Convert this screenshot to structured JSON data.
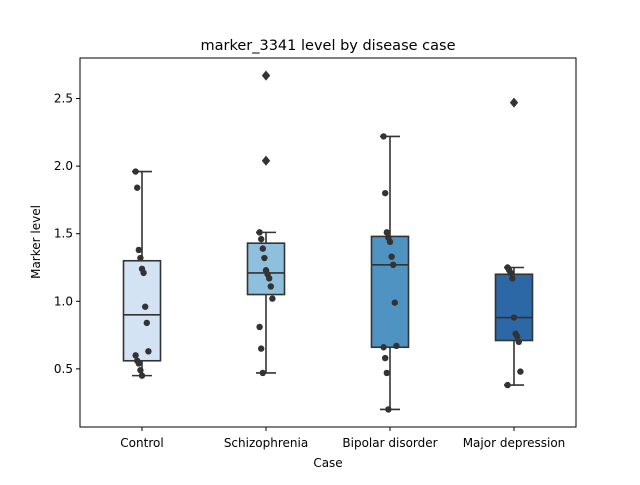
{
  "chart_data": {
    "type": "box",
    "title": "marker_3341 level by disease case",
    "xlabel": "Case",
    "ylabel": "Marker level",
    "ylim": [
      0.07,
      2.8
    ],
    "yticks": [
      0.5,
      1.0,
      1.5,
      2.0,
      2.5
    ],
    "ytick_labels": [
      "0.5",
      "1.0",
      "1.5",
      "2.0",
      "2.5"
    ],
    "grid": false,
    "legend": "none",
    "categories": [
      "Control",
      "Schizophrenia",
      "Bipolar disorder",
      "Major depression"
    ],
    "colors": [
      "#d3e3f3",
      "#8ebfdc",
      "#4f93c3",
      "#2c68a6"
    ],
    "groups": [
      {
        "name": "Control",
        "q1": 0.56,
        "median": 0.9,
        "q3": 1.3,
        "whisker_low": 0.45,
        "whisker_high": 1.96,
        "outliers": [],
        "points": [
          1.96,
          1.84,
          1.38,
          1.32,
          1.24,
          1.21,
          0.96,
          0.84,
          0.63,
          0.6,
          0.56,
          0.54,
          0.49,
          0.45
        ]
      },
      {
        "name": "Schizophrenia",
        "q1": 1.05,
        "median": 1.21,
        "q3": 1.43,
        "whisker_low": 0.47,
        "whisker_high": 1.51,
        "outliers": [
          2.67,
          2.04
        ],
        "points": [
          1.51,
          1.46,
          1.39,
          1.32,
          1.23,
          1.2,
          1.17,
          1.11,
          1.02,
          0.81,
          0.65,
          0.47
        ]
      },
      {
        "name": "Bipolar disorder",
        "q1": 0.66,
        "median": 1.27,
        "q3": 1.48,
        "whisker_low": 0.2,
        "whisker_high": 2.22,
        "outliers": [],
        "points": [
          2.22,
          1.8,
          1.51,
          1.47,
          1.44,
          1.33,
          1.27,
          0.99,
          0.67,
          0.66,
          0.58,
          0.47,
          0.2
        ]
      },
      {
        "name": "Major depression",
        "q1": 0.71,
        "median": 0.88,
        "q3": 1.2,
        "whisker_low": 0.38,
        "whisker_high": 1.25,
        "outliers": [
          2.47
        ],
        "points": [
          1.25,
          1.23,
          1.21,
          1.17,
          0.88,
          0.76,
          0.74,
          0.7,
          0.48,
          0.38
        ]
      }
    ]
  }
}
